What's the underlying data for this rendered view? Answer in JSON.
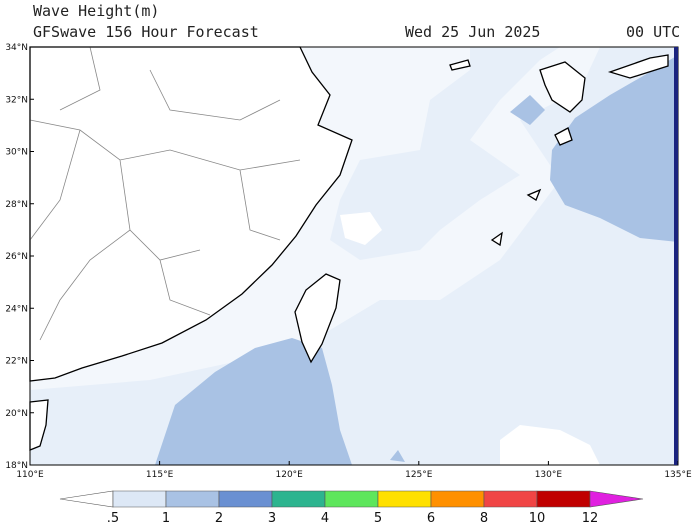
{
  "header": {
    "title": "Wave Height(m)",
    "subtitle": "GFSwave 156 Hour Forecast",
    "date": "Wed 25 Jun 2025",
    "time": "00 UTC"
  },
  "map": {
    "lat_labels": [
      "34°N",
      "32°N",
      "30°N",
      "28°N",
      "26°N",
      "24°N",
      "22°N",
      "20°N",
      "18°N"
    ],
    "lon_labels": [
      "110°E",
      "115°E",
      "120°E",
      "125°E",
      "130°E",
      "135°E"
    ]
  },
  "colorbar": {
    "labels": [
      ".5",
      "1",
      "2",
      "3",
      "4",
      "5",
      "6",
      "8",
      "10",
      "12"
    ],
    "colors": [
      "#ffffff",
      "#dde8f6",
      "#a9c2e4",
      "#6a90d2",
      "#2db48f",
      "#5ee65c",
      "#ffe000",
      "#ff9000",
      "#f04545",
      "#c00000",
      "#e020e0"
    ]
  }
}
